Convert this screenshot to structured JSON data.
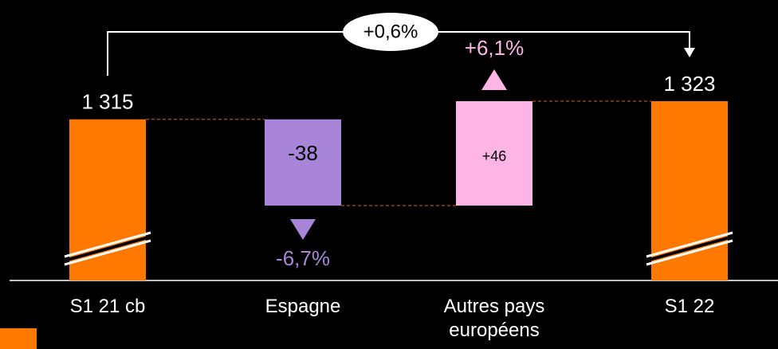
{
  "chart_data": {
    "type": "waterfall",
    "categories": [
      "S1 21 cb",
      "Espagne",
      "Autres pays européens",
      "S1 22"
    ],
    "values": [
      1315,
      -38,
      46,
      1323
    ],
    "value_labels": [
      "1 315",
      "-38",
      "+46",
      "1 323"
    ],
    "kinds": [
      "total",
      "delta",
      "delta",
      "total"
    ],
    "colors": [
      "#ff7900",
      "#a885d8",
      "#ffb4e6",
      "#ff7900"
    ],
    "change_labels": [
      null,
      "-6,7%",
      "+6,1%",
      null
    ],
    "total_change_label": "+0,6%"
  }
}
